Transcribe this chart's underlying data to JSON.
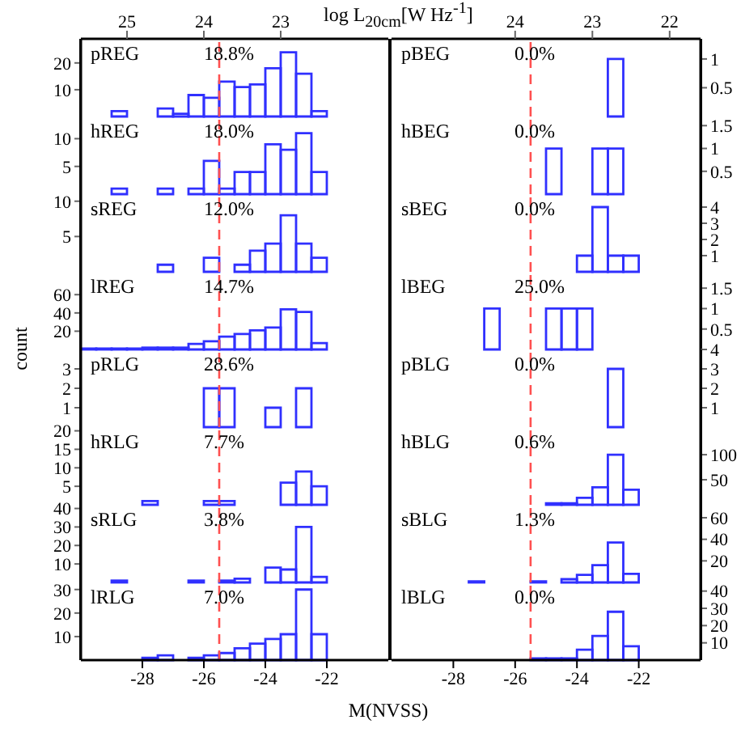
{
  "chart_data": [
    {
      "type": "histogram",
      "annotations": [
        "pREG",
        "18.8%"
      ],
      "bins": [
        -30,
        -29.5,
        -29,
        -28.5,
        -28,
        -27.5,
        -27,
        -26.5,
        -26,
        -25.5,
        -25,
        -24.5,
        -24,
        -23.5,
        -23,
        -22.5,
        -22,
        -21.5,
        -21,
        -20.5,
        -20
      ],
      "values": [
        0,
        0,
        2,
        0,
        0,
        3,
        1,
        8,
        7,
        13,
        11,
        12,
        18,
        24,
        16,
        2,
        0,
        0,
        0,
        0
      ],
      "color": "#3030ff",
      "xlim": [
        -30,
        -20
      ],
      "xticks": [
        -28,
        -26,
        -24,
        -22
      ],
      "x2lim": [
        25.6,
        21.6
      ],
      "x2ticks": [
        25,
        24,
        23
      ],
      "ylim": [
        0,
        29
      ],
      "yticks": [
        10,
        20
      ],
      "ref_lines": [
        {
          "axis": "x",
          "value": -25.5,
          "color": "#ff5050",
          "line_style": "dashed"
        }
      ],
      "tick_labels": "y"
    },
    {
      "type": "histogram",
      "annotations": [
        "pBEG",
        "0.0%"
      ],
      "x2label": "log L$_{20cm}$[W Hz$^{-1}$]",
      "bins": [
        -30,
        -29.5,
        -29,
        -28.5,
        -28,
        -27.5,
        -27,
        -26.5,
        -26,
        -25.5,
        -25,
        -24.5,
        -24,
        -23.5,
        -23,
        -22.5,
        -22,
        -21.5,
        -21,
        -20.5,
        -20
      ],
      "values": [
        0,
        0,
        0,
        0,
        0,
        0,
        0,
        0,
        0,
        0,
        0,
        0,
        0,
        0,
        1,
        0,
        0,
        0,
        0,
        0
      ],
      "color": "#3030ff",
      "xlim": [
        -30,
        -20
      ],
      "xticks": [
        -28,
        -26,
        -24,
        -22
      ],
      "x2lim": [
        25.6,
        21.6
      ],
      "x2ticks": [
        24,
        23,
        22
      ],
      "ylim": [
        0,
        1.35
      ],
      "yticks": [
        0.5,
        1
      ],
      "ref_lines": [
        {
          "axis": "x",
          "value": -25.5,
          "color": "#ff5050",
          "line_style": "dashed"
        }
      ],
      "tick_labels": "y"
    },
    {
      "type": "histogram",
      "annotations": [
        "hREG",
        "18.0%"
      ],
      "bins": [
        -30,
        -29.5,
        -29,
        -28.5,
        -28,
        -27.5,
        -27,
        -26.5,
        -26,
        -25.5,
        -25,
        -24.5,
        -24,
        -23.5,
        -23,
        -22.5,
        -22,
        -21.5,
        -21,
        -20.5,
        -20
      ],
      "values": [
        0,
        0,
        1,
        0,
        0,
        1,
        0,
        1,
        6,
        1,
        4,
        4,
        9,
        8,
        11,
        4,
        0,
        0,
        0,
        0
      ],
      "color": "#3030ff",
      "xlim": [
        -30,
        -20
      ],
      "xticks": [
        -28,
        -26,
        -24,
        -22
      ],
      "ylim": [
        0,
        14
      ],
      "yticks": [
        5,
        10
      ],
      "ref_lines": [
        {
          "axis": "x",
          "value": -25.5,
          "color": "#ff5050",
          "line_style": "dashed"
        }
      ],
      "tick_labels": "y"
    },
    {
      "type": "histogram",
      "annotations": [
        "hBEG",
        "0.0%"
      ],
      "bins": [
        -30,
        -29.5,
        -29,
        -28.5,
        -28,
        -27.5,
        -27,
        -26.5,
        -26,
        -25.5,
        -25,
        -24.5,
        -24,
        -23.5,
        -23,
        -22.5,
        -22,
        -21.5,
        -21,
        -20.5,
        -20
      ],
      "values": [
        0,
        0,
        0,
        0,
        0,
        0,
        0,
        0,
        0,
        0,
        1,
        0,
        0,
        1,
        1,
        0,
        0,
        0,
        0,
        0
      ],
      "color": "#3030ff",
      "xlim": [
        -30,
        -20
      ],
      "xticks": [
        -28,
        -26,
        -24,
        -22
      ],
      "ylim": [
        0,
        1.7
      ],
      "yticks": [
        0.5,
        1,
        1.5
      ],
      "ref_lines": [
        {
          "axis": "x",
          "value": -25.5,
          "color": "#ff5050",
          "line_style": "dashed"
        }
      ],
      "tick_labels": "y"
    },
    {
      "type": "histogram",
      "annotations": [
        "sREG",
        "12.0%"
      ],
      "bins": [
        -30,
        -29.5,
        -29,
        -28.5,
        -28,
        -27.5,
        -27,
        -26.5,
        -26,
        -25.5,
        -25,
        -24.5,
        -24,
        -23.5,
        -23,
        -22.5,
        -22,
        -21.5,
        -21,
        -20.5,
        -20
      ],
      "values": [
        0,
        0,
        0,
        0,
        0,
        1,
        0,
        0,
        2,
        0,
        1,
        3,
        4,
        8,
        4,
        2,
        0,
        0,
        0,
        0
      ],
      "color": "#3030ff",
      "xlim": [
        -30,
        -20
      ],
      "xticks": [
        -28,
        -26,
        -24,
        -22
      ],
      "ylim": [
        0,
        11
      ],
      "yticks": [
        5,
        10
      ],
      "ref_lines": [
        {
          "axis": "x",
          "value": -25.5,
          "color": "#ff5050",
          "line_style": "dashed"
        }
      ],
      "tick_labels": "y"
    },
    {
      "type": "histogram",
      "annotations": [
        "sBEG",
        "0.0%"
      ],
      "bins": [
        -30,
        -29.5,
        -29,
        -28.5,
        -28,
        -27.5,
        -27,
        -26.5,
        -26,
        -25.5,
        -25,
        -24.5,
        -24,
        -23.5,
        -23,
        -22.5,
        -22,
        -21.5,
        -21,
        -20.5,
        -20
      ],
      "values": [
        0,
        0,
        0,
        0,
        0,
        0,
        0,
        0,
        0,
        0,
        0,
        0,
        1,
        4,
        1,
        1,
        0,
        0,
        0,
        0
      ],
      "color": "#3030ff",
      "xlim": [
        -30,
        -20
      ],
      "xticks": [
        -28,
        -26,
        -24,
        -22
      ],
      "ylim": [
        0,
        4.8
      ],
      "yticks": [
        1,
        2,
        3,
        4
      ],
      "ref_lines": [
        {
          "axis": "x",
          "value": -25.5,
          "color": "#ff5050",
          "line_style": "dashed"
        }
      ],
      "tick_labels": "y"
    },
    {
      "type": "histogram",
      "annotations": [
        "lREG",
        "14.7%"
      ],
      "ylabel": "count",
      "bins": [
        -30,
        -29.5,
        -29,
        -28.5,
        -28,
        -27.5,
        -27,
        -26.5,
        -26,
        -25.5,
        -25,
        -24.5,
        -24,
        -23.5,
        -23,
        -22.5,
        -22,
        -21.5,
        -21,
        -20.5,
        -20
      ],
      "values": [
        1,
        1,
        1,
        1,
        2,
        2,
        2,
        6,
        9,
        14,
        17,
        21,
        24,
        44,
        41,
        7,
        0,
        0,
        0,
        0
      ],
      "color": "#3030ff",
      "xlim": [
        -30,
        -20
      ],
      "xticks": [
        -28,
        -26,
        -24,
        -22
      ],
      "ylim": [
        0,
        85
      ],
      "yticks": [
        20,
        40,
        60
      ],
      "ref_lines": [
        {
          "axis": "x",
          "value": -25.5,
          "color": "#ff5050",
          "line_style": "dashed"
        }
      ],
      "tick_labels": "y"
    },
    {
      "type": "histogram",
      "annotations": [
        "lBEG",
        "25.0%"
      ],
      "bins": [
        -30,
        -29.5,
        -29,
        -28.5,
        -28,
        -27.5,
        -27,
        -26.5,
        -26,
        -25.5,
        -25,
        -24.5,
        -24,
        -23.5,
        -23,
        -22.5,
        -22,
        -21.5,
        -21,
        -20.5,
        -20
      ],
      "values": [
        0,
        0,
        0,
        0,
        0,
        0,
        1,
        0,
        0,
        0,
        1,
        1,
        1,
        0,
        0,
        0,
        0,
        0,
        0,
        0
      ],
      "color": "#3030ff",
      "xlim": [
        -30,
        -20
      ],
      "xticks": [
        -28,
        -26,
        -24,
        -22
      ],
      "ylim": [
        0,
        1.9
      ],
      "yticks": [
        0.5,
        1,
        1.5
      ],
      "ref_lines": [
        {
          "axis": "x",
          "value": -25.5,
          "color": "#ff5050",
          "line_style": "dashed"
        }
      ],
      "tick_labels": "y"
    },
    {
      "type": "histogram",
      "annotations": [
        "pRLG",
        "28.6%"
      ],
      "bins": [
        -30,
        -29.5,
        -29,
        -28.5,
        -28,
        -27.5,
        -27,
        -26.5,
        -26,
        -25.5,
        -25,
        -24.5,
        -24,
        -23.5,
        -23,
        -22.5,
        -22,
        -21.5,
        -21,
        -20.5,
        -20
      ],
      "values": [
        0,
        0,
        0,
        0,
        0,
        0,
        0,
        0,
        2,
        2,
        0,
        0,
        1,
        0,
        2,
        0,
        0,
        0,
        0,
        0
      ],
      "color": "#3030ff",
      "xlim": [
        -30,
        -20
      ],
      "xticks": [
        -28,
        -26,
        -24,
        -22
      ],
      "ylim": [
        0,
        4
      ],
      "yticks": [
        1,
        2,
        3
      ],
      "ref_lines": [
        {
          "axis": "x",
          "value": -25.5,
          "color": "#ff5050",
          "line_style": "dashed"
        }
      ],
      "tick_labels": "y"
    },
    {
      "type": "histogram",
      "annotations": [
        "pBLG",
        "0.0%"
      ],
      "bins": [
        -30,
        -29.5,
        -29,
        -28.5,
        -28,
        -27.5,
        -27,
        -26.5,
        -26,
        -25.5,
        -25,
        -24.5,
        -24,
        -23.5,
        -23,
        -22.5,
        -22,
        -21.5,
        -21,
        -20.5,
        -20
      ],
      "values": [
        0,
        0,
        0,
        0,
        0,
        0,
        0,
        0,
        0,
        0,
        0,
        0,
        0,
        0,
        3,
        0,
        0,
        0,
        0,
        0
      ],
      "color": "#3030ff",
      "xlim": [
        -30,
        -20
      ],
      "xticks": [
        -28,
        -26,
        -24,
        -22
      ],
      "ylim": [
        0,
        4
      ],
      "yticks": [
        1,
        2,
        3,
        4
      ],
      "ref_lines": [
        {
          "axis": "x",
          "value": -25.5,
          "color": "#ff5050",
          "line_style": "dashed"
        }
      ],
      "tick_labels": "y"
    },
    {
      "type": "histogram",
      "annotations": [
        "hRLG",
        "7.7%"
      ],
      "bins": [
        -30,
        -29.5,
        -29,
        -28.5,
        -28,
        -27.5,
        -27,
        -26.5,
        -26,
        -25.5,
        -25,
        -24.5,
        -24,
        -23.5,
        -23,
        -22.5,
        -22,
        -21.5,
        -21,
        -20.5,
        -20
      ],
      "values": [
        0,
        0,
        0,
        0,
        1,
        0,
        0,
        0,
        1,
        1,
        0,
        0,
        0,
        6,
        9,
        5,
        0,
        0,
        0,
        0
      ],
      "color": "#3030ff",
      "xlim": [
        -30,
        -20
      ],
      "xticks": [
        -28,
        -26,
        -24,
        -22
      ],
      "ylim": [
        0,
        21
      ],
      "yticks": [
        5,
        10,
        15,
        20
      ],
      "ref_lines": [
        {
          "axis": "x",
          "value": -25.5,
          "color": "#ff5050",
          "line_style": "dashed"
        }
      ],
      "tick_labels": "y"
    },
    {
      "type": "histogram",
      "annotations": [
        "hBLG",
        "0.6%"
      ],
      "bins": [
        -30,
        -29.5,
        -29,
        -28.5,
        -28,
        -27.5,
        -27,
        -26.5,
        -26,
        -25.5,
        -25,
        -24.5,
        -24,
        -23.5,
        -23,
        -22.5,
        -22,
        -21.5,
        -21,
        -20.5,
        -20
      ],
      "values": [
        0,
        0,
        0,
        0,
        0,
        0,
        0,
        0,
        0,
        0,
        3,
        3,
        14,
        35,
        100,
        30,
        0,
        0,
        0,
        0
      ],
      "color": "#3030ff",
      "xlim": [
        -30,
        -20
      ],
      "xticks": [
        -28,
        -26,
        -24,
        -22
      ],
      "ylim": [
        0,
        155
      ],
      "yticks": [
        50,
        100
      ],
      "ref_lines": [
        {
          "axis": "x",
          "value": -25.5,
          "color": "#ff5050",
          "line_style": "dashed"
        }
      ],
      "tick_labels": "y"
    },
    {
      "type": "histogram",
      "annotations": [
        "sRLG",
        "3.8%"
      ],
      "bins": [
        -30,
        -29.5,
        -29,
        -28.5,
        -28,
        -27.5,
        -27,
        -26.5,
        -26,
        -25.5,
        -25,
        -24.5,
        -24,
        -23.5,
        -23,
        -22.5,
        -22,
        -21.5,
        -21,
        -20.5,
        -20
      ],
      "values": [
        0,
        0,
        1,
        0,
        0,
        0,
        0,
        1,
        0,
        1,
        2,
        0,
        8,
        7,
        30,
        3,
        0,
        0,
        0,
        0
      ],
      "color": "#3030ff",
      "xlim": [
        -30,
        -20
      ],
      "xticks": [
        -28,
        -26,
        -24,
        -22
      ],
      "ylim": [
        0,
        42
      ],
      "yticks": [
        10,
        20,
        30,
        40
      ],
      "ref_lines": [
        {
          "axis": "x",
          "value": -25.5,
          "color": "#ff5050",
          "line_style": "dashed"
        }
      ],
      "tick_labels": "y"
    },
    {
      "type": "histogram",
      "annotations": [
        "sBLG",
        "1.3%"
      ],
      "bins": [
        -30,
        -29.5,
        -29,
        -28.5,
        -28,
        -27.5,
        -27,
        -26.5,
        -26,
        -25.5,
        -25,
        -24.5,
        -24,
        -23.5,
        -23,
        -22.5,
        -22,
        -21.5,
        -21,
        -20.5,
        -20
      ],
      "values": [
        0,
        0,
        0,
        0,
        0,
        1,
        0,
        0,
        0,
        1,
        0,
        3,
        7,
        16,
        37,
        8,
        0,
        0,
        0,
        0
      ],
      "color": "#3030ff",
      "xlim": [
        -30,
        -20
      ],
      "xticks": [
        -28,
        -26,
        -24,
        -22
      ],
      "ylim": [
        0,
        72
      ],
      "yticks": [
        20,
        40,
        60
      ],
      "ref_lines": [
        {
          "axis": "x",
          "value": -25.5,
          "color": "#ff5050",
          "line_style": "dashed"
        }
      ],
      "tick_labels": "y"
    },
    {
      "type": "histogram",
      "annotations": [
        "lRLG",
        "7.0%"
      ],
      "xlabel": "M(NVSS)",
      "bins": [
        -30,
        -29.5,
        -29,
        -28.5,
        -28,
        -27.5,
        -27,
        -26.5,
        -26,
        -25.5,
        -25,
        -24.5,
        -24,
        -23.5,
        -23,
        -22.5,
        -22,
        -21.5,
        -21,
        -20.5,
        -20
      ],
      "values": [
        0,
        0,
        0,
        0,
        1,
        2,
        0,
        1,
        2,
        3,
        5,
        7,
        9,
        11,
        30,
        11,
        0,
        0,
        0,
        0
      ],
      "color": "#3030ff",
      "xlim": [
        -30,
        -20
      ],
      "xticks": [
        -28,
        -26,
        -24,
        -22
      ],
      "ylim": [
        0,
        33
      ],
      "yticks": [
        10,
        20,
        30
      ],
      "ref_lines": [
        {
          "axis": "x",
          "value": -25.5,
          "color": "#ff5050",
          "line_style": "dashed"
        }
      ]
    },
    {
      "type": "histogram",
      "annotations": [
        "lBLG",
        "0.0%"
      ],
      "bins": [
        -30,
        -29.5,
        -29,
        -28.5,
        -28,
        -27.5,
        -27,
        -26.5,
        -26,
        -25.5,
        -25,
        -24.5,
        -24,
        -23.5,
        -23,
        -22.5,
        -22,
        -21.5,
        -21,
        -20.5,
        -20
      ],
      "values": [
        0,
        0,
        0,
        0,
        0,
        0,
        0,
        0,
        0,
        1,
        1,
        1,
        6,
        14,
        28,
        8,
        0,
        0,
        0,
        0
      ],
      "color": "#3030ff",
      "xlim": [
        -30,
        -20
      ],
      "xticks": [
        -28,
        -26,
        -24,
        -22
      ],
      "ylim": [
        0,
        45
      ],
      "yticks": [
        10,
        20,
        30,
        40
      ],
      "ref_lines": [
        {
          "axis": "x",
          "value": -25.5,
          "color": "#ff5050",
          "line_style": "dashed"
        }
      ]
    }
  ]
}
